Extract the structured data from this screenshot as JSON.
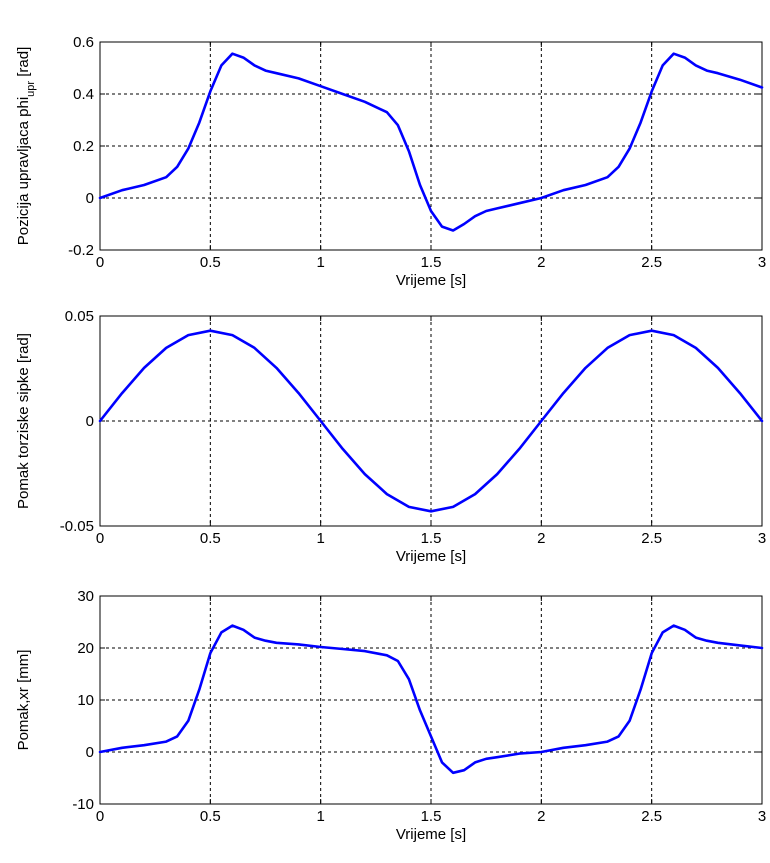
{
  "chart_data": [
    {
      "type": "line",
      "ylabel": "Pozicija upravljaca phi",
      "ylabel_sub": "upr",
      "ylabel_unit": " [rad]",
      "xlabel": "Vrijeme [s]",
      "xlim": [
        0,
        3
      ],
      "ylim": [
        -0.2,
        0.6
      ],
      "xticks": [
        "0",
        "0.5",
        "1",
        "1.5",
        "2",
        "2.5",
        "3"
      ],
      "yticks": [
        "-0.2",
        "0",
        "0.2",
        "0.4",
        "0.6"
      ],
      "grid": true,
      "color": "#0000ff",
      "x": [
        0,
        0.1,
        0.2,
        0.3,
        0.35,
        0.4,
        0.45,
        0.5,
        0.55,
        0.6,
        0.65,
        0.7,
        0.75,
        0.8,
        0.9,
        1.0,
        1.1,
        1.2,
        1.3,
        1.35,
        1.4,
        1.45,
        1.5,
        1.55,
        1.6,
        1.65,
        1.7,
        1.75,
        1.8,
        1.9,
        2.0,
        2.1,
        2.2,
        2.3,
        2.35,
        2.4,
        2.45,
        2.5,
        2.55,
        2.6,
        2.65,
        2.7,
        2.75,
        2.8,
        2.9,
        3.0
      ],
      "y": [
        0.0,
        0.03,
        0.05,
        0.08,
        0.12,
        0.19,
        0.29,
        0.41,
        0.51,
        0.555,
        0.54,
        0.51,
        0.49,
        0.48,
        0.46,
        0.43,
        0.4,
        0.37,
        0.33,
        0.28,
        0.18,
        0.05,
        -0.05,
        -0.11,
        -0.125,
        -0.1,
        -0.07,
        -0.05,
        -0.04,
        -0.02,
        0.0,
        0.03,
        0.05,
        0.08,
        0.12,
        0.19,
        0.29,
        0.41,
        0.51,
        0.555,
        0.54,
        0.51,
        0.49,
        0.48,
        0.455,
        0.425
      ]
    },
    {
      "type": "line",
      "ylabel": "Pomak torziske sipke [rad]",
      "xlabel": "Vrijeme [s]",
      "xlim": [
        0,
        3
      ],
      "ylim": [
        -0.05,
        0.05
      ],
      "xticks": [
        "0",
        "0.5",
        "1",
        "1.5",
        "2",
        "2.5",
        "3"
      ],
      "yticks": [
        "-0.05",
        "0",
        "0.05"
      ],
      "grid": true,
      "color": "#0000ff",
      "x": [
        0,
        0.1,
        0.2,
        0.3,
        0.4,
        0.5,
        0.6,
        0.7,
        0.8,
        0.9,
        1.0,
        1.1,
        1.2,
        1.3,
        1.4,
        1.5,
        1.6,
        1.7,
        1.8,
        1.9,
        2.0,
        2.1,
        2.2,
        2.3,
        2.4,
        2.5,
        2.6,
        2.7,
        2.8,
        2.9,
        3.0
      ],
      "y": [
        0.0,
        0.0133,
        0.0253,
        0.0348,
        0.0409,
        0.043,
        0.0409,
        0.0348,
        0.0253,
        0.0133,
        0.0,
        -0.0133,
        -0.0253,
        -0.0348,
        -0.0409,
        -0.043,
        -0.0409,
        -0.0348,
        -0.0253,
        -0.0133,
        0.0,
        0.0133,
        0.0253,
        0.0348,
        0.0409,
        0.043,
        0.0409,
        0.0348,
        0.0253,
        0.0133,
        0.0
      ]
    },
    {
      "type": "line",
      "ylabel": "Pomak,xr [mm]",
      "xlabel": "Vrijeme [s]",
      "xlim": [
        0,
        3
      ],
      "ylim": [
        -10,
        30
      ],
      "xticks": [
        "0",
        "0.5",
        "1",
        "1.5",
        "2",
        "2.5",
        "3"
      ],
      "yticks": [
        "-10",
        "0",
        "10",
        "20",
        "30"
      ],
      "grid": true,
      "color": "#0000ff",
      "x": [
        0,
        0.1,
        0.2,
        0.3,
        0.35,
        0.4,
        0.45,
        0.5,
        0.55,
        0.6,
        0.65,
        0.7,
        0.75,
        0.8,
        0.9,
        1.0,
        1.1,
        1.2,
        1.3,
        1.35,
        1.4,
        1.45,
        1.5,
        1.55,
        1.6,
        1.65,
        1.7,
        1.75,
        1.8,
        1.9,
        2.0,
        2.1,
        2.2,
        2.3,
        2.35,
        2.4,
        2.45,
        2.5,
        2.55,
        2.6,
        2.65,
        2.7,
        2.75,
        2.8,
        2.9,
        3.0
      ],
      "y": [
        0,
        0.8,
        1.3,
        2.0,
        3.0,
        6.0,
        12.0,
        19.0,
        23.0,
        24.3,
        23.5,
        22.0,
        21.4,
        21.0,
        20.7,
        20.2,
        19.8,
        19.4,
        18.6,
        17.5,
        14.0,
        8.0,
        3.0,
        -2.0,
        -4.0,
        -3.5,
        -2.0,
        -1.3,
        -1.0,
        -0.3,
        0.0,
        0.8,
        1.3,
        2.0,
        3.0,
        6.0,
        12.0,
        19.0,
        23.0,
        24.3,
        23.5,
        22.0,
        21.4,
        21.0,
        20.5,
        20.0
      ]
    }
  ]
}
